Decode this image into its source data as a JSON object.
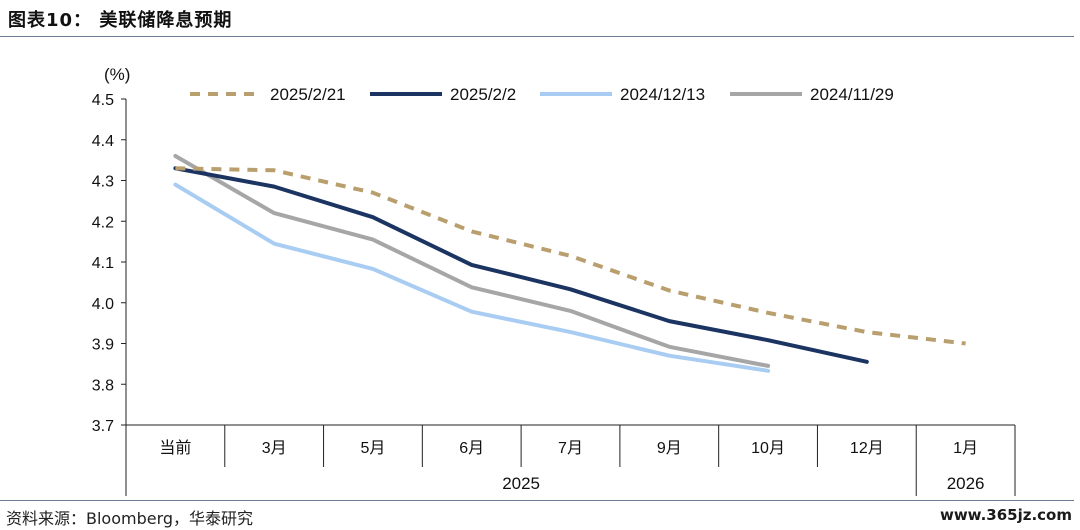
{
  "title": "图表10：  美联储降息预期",
  "source": "资料来源：Bloomberg，华泰研究",
  "watermark": "www.365jz.com",
  "chart_data": {
    "type": "line",
    "title": "",
    "ylabel": "(%)",
    "ylim": [
      3.7,
      4.5
    ],
    "yticks": [
      "4.5",
      "4.4",
      "4.3",
      "4.2",
      "4.1",
      "4.0",
      "3.9",
      "3.8",
      "3.7"
    ],
    "categories": [
      "当前",
      "3月",
      "5月",
      "6月",
      "7月",
      "9月",
      "10月",
      "12月",
      "1月"
    ],
    "year_groups": [
      {
        "label": "2025",
        "span": 8
      },
      {
        "label": "2026",
        "span": 1
      }
    ],
    "legend_position": "top",
    "series": [
      {
        "name": "2025/2/21",
        "color": "#b99f6e",
        "dash": true,
        "values": [
          4.33,
          4.325,
          4.27,
          4.175,
          4.115,
          4.03,
          3.975,
          3.928,
          3.9
        ]
      },
      {
        "name": "2025/2/2",
        "color": "#1b3462",
        "dash": false,
        "values": [
          4.33,
          4.285,
          4.21,
          4.093,
          4.033,
          3.955,
          3.908,
          3.855,
          null
        ]
      },
      {
        "name": "2024/12/13",
        "color": "#a9cdf2",
        "dash": false,
        "values": [
          4.29,
          4.145,
          4.083,
          3.978,
          3.928,
          3.87,
          3.833,
          null,
          null
        ]
      },
      {
        "name": "2024/11/29",
        "color": "#a6a6a6",
        "dash": false,
        "values": [
          4.36,
          4.22,
          4.155,
          4.038,
          3.98,
          3.892,
          3.845,
          null,
          null
        ]
      }
    ]
  }
}
